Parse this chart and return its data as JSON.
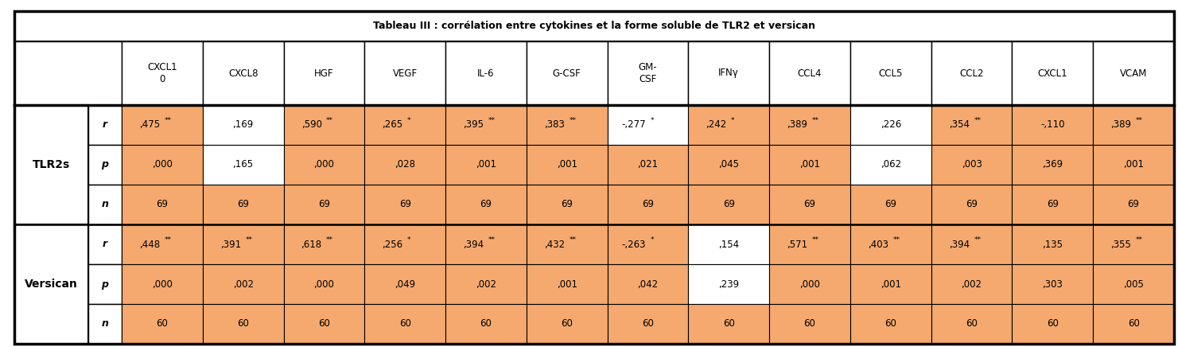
{
  "title": "Tableau III : corrélation entre cytokines et la forme soluble de TLR2 et versican",
  "col_headers": [
    "CXCL1\n0",
    "CXCL8",
    "HGF",
    "VEGF",
    "IL-6",
    "G-CSF",
    "GM-\nCSF",
    "IFNγ",
    "CCL4",
    "CCL5",
    "CCL2",
    "CXCL1",
    "VCAM"
  ],
  "row_groups": [
    "TLR2s",
    "Versican"
  ],
  "row_labels": [
    "r",
    "p",
    "n"
  ],
  "data": {
    "TLR2s": {
      "r": [
        ",475**",
        ",169",
        ",590**",
        ",265*",
        ",395**",
        ",383**",
        "-,277*",
        ",242*",
        ",389**",
        ",226",
        ",354**",
        "-,110",
        ",389**"
      ],
      "p": [
        ",000",
        ",165",
        ",000",
        ",028",
        ",001",
        ",001",
        ",021",
        ",045",
        ",001",
        ",062",
        ",003",
        ",369",
        ",001"
      ],
      "n": [
        "69",
        "69",
        "69",
        "69",
        "69",
        "69",
        "69",
        "69",
        "69",
        "69",
        "69",
        "69",
        "69"
      ]
    },
    "Versican": {
      "r": [
        ",448**",
        ",391**",
        ",618**",
        ",256*",
        ",394**",
        ",432**",
        "-,263*",
        ",154",
        ",571**",
        ",403**",
        ",394**",
        ",135",
        ",355**"
      ],
      "p": [
        ",000",
        ",002",
        ",000",
        ",049",
        ",002",
        ",001",
        ",042",
        ",239",
        ",000",
        ",001",
        ",002",
        ",303",
        ",005"
      ],
      "n": [
        "60",
        "60",
        "60",
        "60",
        "60",
        "60",
        "60",
        "60",
        "60",
        "60",
        "60",
        "60",
        "60"
      ]
    }
  },
  "orange_bg": "#F5A96E",
  "white_bg": "#FFFFFF",
  "white_cols_TLR2s_r": [
    1,
    6,
    9
  ],
  "white_cols_TLR2s_p": [
    1,
    9
  ],
  "white_cols_TLR2s_n": [],
  "white_cols_Versican_r": [
    7
  ],
  "white_cols_Versican_p": [
    7
  ],
  "white_cols_Versican_n": []
}
